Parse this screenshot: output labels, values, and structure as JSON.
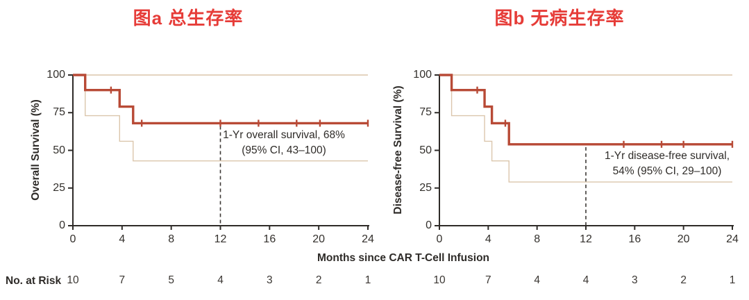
{
  "figure": {
    "x_axis_label": "Months since CAR T-Cell Infusion",
    "no_at_risk_label": "No. at Risk"
  },
  "colors": {
    "title_red": "#e63c38",
    "curve": "#b84a36",
    "ci_band": "#dbc6ac",
    "axis": "#2e2b28",
    "text": "#33302c",
    "dashed": "#3c3835"
  },
  "chart_data": [
    {
      "type": "line",
      "panel": "a",
      "title": "图a  总生存率",
      "ylabel": "Overall Survival (%)",
      "xlabel": "Months since CAR T-Cell Infusion",
      "xlim": [
        0,
        24
      ],
      "ylim": [
        0,
        100
      ],
      "x_ticks": [
        "0",
        "4",
        "8",
        "12",
        "16",
        "20",
        "24"
      ],
      "y_ticks": [
        "0",
        "25",
        "50",
        "75",
        "100"
      ],
      "series": [
        {
          "name": "overall-survival",
          "steps": [
            [
              0,
              100
            ],
            [
              1,
              100
            ],
            [
              1,
              90
            ],
            [
              3.8,
              90
            ],
            [
              3.8,
              79
            ],
            [
              4.9,
              79
            ],
            [
              4.9,
              68
            ],
            [
              24,
              68
            ]
          ]
        },
        {
          "name": "ci-upper",
          "steps": [
            [
              0,
              100
            ],
            [
              24,
              100
            ]
          ]
        },
        {
          "name": "ci-lower",
          "steps": [
            [
              0,
              100
            ],
            [
              1,
              100
            ],
            [
              1,
              73
            ],
            [
              3.8,
              73
            ],
            [
              3.8,
              56
            ],
            [
              4.9,
              56
            ],
            [
              4.9,
              43
            ],
            [
              24,
              43
            ]
          ]
        }
      ],
      "censor_marks": [
        [
          3.1,
          90
        ],
        [
          5.6,
          68
        ],
        [
          12,
          68
        ],
        [
          15.1,
          68
        ],
        [
          18.2,
          68
        ],
        [
          20.1,
          68
        ],
        [
          24,
          68
        ]
      ],
      "dashed_line_x": 12,
      "annotation": [
        "1-Yr overall survival, 68%",
        "(95% CI, 43–100)"
      ],
      "no_at_risk": [
        "10",
        "7",
        "5",
        "4",
        "3",
        "2",
        "1"
      ]
    },
    {
      "type": "line",
      "panel": "b",
      "title": "图b  无病生存率",
      "ylabel": "Disease-free Survival (%)",
      "xlabel": "Months since CAR T-Cell Infusion",
      "xlim": [
        0,
        24
      ],
      "ylim": [
        0,
        100
      ],
      "x_ticks": [
        "0",
        "4",
        "8",
        "12",
        "16",
        "20",
        "24"
      ],
      "y_ticks": [
        "0",
        "25",
        "50",
        "75",
        "100"
      ],
      "series": [
        {
          "name": "disease-free-survival",
          "steps": [
            [
              0,
              100
            ],
            [
              1,
              100
            ],
            [
              1,
              90
            ],
            [
              3.7,
              90
            ],
            [
              3.7,
              79
            ],
            [
              4.3,
              79
            ],
            [
              4.3,
              68
            ],
            [
              5.7,
              68
            ],
            [
              5.7,
              54
            ],
            [
              24,
              54
            ]
          ]
        },
        {
          "name": "ci-upper",
          "steps": [
            [
              0,
              100
            ],
            [
              24,
              100
            ]
          ]
        },
        {
          "name": "ci-lower",
          "steps": [
            [
              0,
              100
            ],
            [
              1,
              100
            ],
            [
              1,
              73
            ],
            [
              3.7,
              73
            ],
            [
              3.7,
              56
            ],
            [
              4.3,
              56
            ],
            [
              4.3,
              43
            ],
            [
              5.7,
              43
            ],
            [
              5.7,
              29
            ],
            [
              24,
              29
            ]
          ]
        }
      ],
      "censor_marks": [
        [
          3.1,
          90
        ],
        [
          5.4,
          68
        ],
        [
          15.1,
          54
        ],
        [
          18.2,
          54
        ],
        [
          20,
          54
        ],
        [
          24,
          54
        ]
      ],
      "dashed_line_x": 12,
      "annotation": [
        "1-Yr disease-free survival,",
        "54% (95% CI, 29–100)"
      ],
      "no_at_risk": [
        "10",
        "7",
        "4",
        "4",
        "3",
        "2",
        "1"
      ]
    }
  ]
}
